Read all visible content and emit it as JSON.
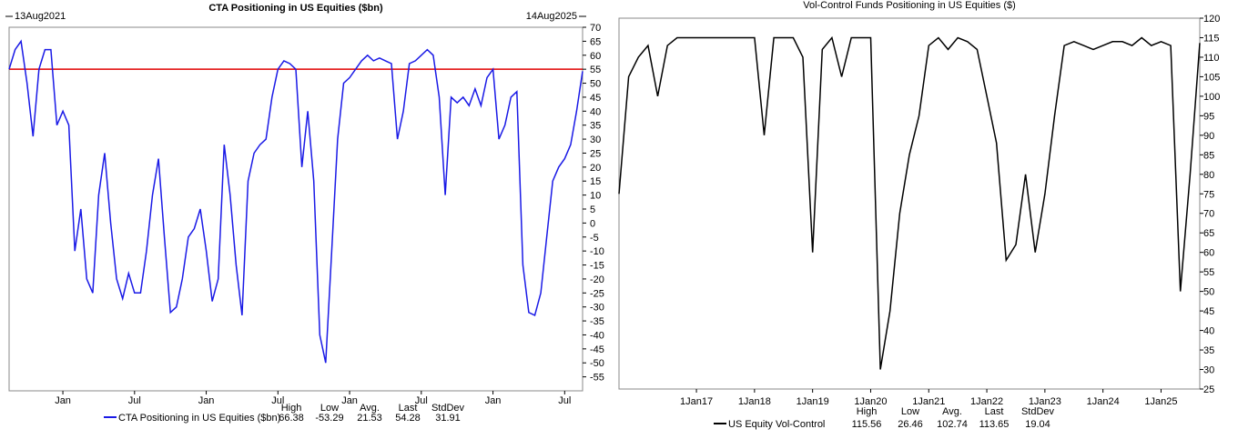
{
  "chart_data": [
    {
      "type": "line",
      "title": "CTA Positioning in US Equities ($bn)",
      "start_label": "13Aug2021",
      "end_label": "14Aug2025",
      "categories": [
        null,
        null,
        null,
        null,
        null,
        null,
        null,
        null,
        null,
        "Jan",
        null,
        null,
        null,
        null,
        null,
        null,
        null,
        null,
        null,
        null,
        null,
        "Jul",
        null,
        null,
        null,
        null,
        null,
        null,
        null,
        null,
        null,
        null,
        null,
        "Jan",
        null,
        null,
        null,
        null,
        null,
        null,
        null,
        null,
        null,
        null,
        null,
        "Jul",
        null,
        null,
        null,
        null,
        null,
        null,
        null,
        null,
        null,
        null,
        null,
        "Jan",
        null,
        null,
        null,
        null,
        null,
        null,
        null,
        null,
        null,
        null,
        null,
        "Jul",
        null,
        null,
        null,
        null,
        null,
        null,
        null,
        null,
        null,
        null,
        null,
        "Jan",
        null,
        null,
        null,
        null,
        null,
        null,
        null,
        null,
        null,
        null,
        null,
        "Jul",
        null,
        null,
        null
      ],
      "series": [
        {
          "name": "CTA Positioning in US Equities ($bn)",
          "color": "#1a1ae6",
          "values": [
            55,
            62,
            65,
            50,
            31,
            55,
            62,
            62,
            35,
            40,
            35,
            -10,
            5,
            -20,
            -25,
            10,
            25,
            0,
            -20,
            -27,
            -18,
            -25,
            -25,
            -10,
            10,
            23,
            -5,
            -32,
            -30,
            -20,
            -5,
            -2,
            5,
            -10,
            -28,
            -20,
            28,
            10,
            -15,
            -33,
            15,
            25,
            28,
            30,
            45,
            55,
            58,
            57,
            55,
            20,
            40,
            15,
            -40,
            -50,
            -10,
            30,
            50,
            52,
            55,
            58,
            60,
            58,
            59,
            58,
            57,
            30,
            40,
            57,
            58,
            60,
            62,
            60,
            45,
            10,
            45,
            43,
            45,
            42,
            48,
            42,
            52,
            55,
            30,
            35,
            45,
            47,
            -15,
            -32,
            -33,
            -25,
            -5,
            15,
            20,
            23,
            28,
            40,
            54.28
          ]
        }
      ],
      "ref_line": {
        "value": 55,
        "color": "#e00000"
      },
      "ylim": [
        -60,
        70
      ],
      "yticks": [
        70,
        65,
        60,
        55,
        50,
        45,
        40,
        35,
        30,
        25,
        20,
        15,
        10,
        5,
        0,
        -5,
        -10,
        -15,
        -20,
        -25,
        -30,
        -35,
        -40,
        -45,
        -50,
        -55
      ],
      "stats": {
        "labels": [
          "High",
          "Low",
          "Avg.",
          "Last",
          "StdDev"
        ],
        "values": [
          66.38,
          -53.29,
          21.53,
          54.28,
          31.91
        ]
      }
    },
    {
      "type": "line",
      "title": "Vol-Control Funds Positioning in US Equities ($)",
      "categories": [
        null,
        null,
        null,
        null,
        null,
        null,
        null,
        null,
        "1Jan17",
        null,
        null,
        null,
        null,
        null,
        "1Jan18",
        null,
        null,
        null,
        null,
        null,
        "1Jan19",
        null,
        null,
        null,
        null,
        null,
        "1Jan20",
        null,
        null,
        null,
        null,
        null,
        "1Jan21",
        null,
        null,
        null,
        null,
        null,
        "1Jan22",
        null,
        null,
        null,
        null,
        null,
        "1Jan23",
        null,
        null,
        null,
        null,
        null,
        "1Jan24",
        null,
        null,
        null,
        null,
        null,
        "1Jan25",
        null,
        null,
        null,
        null
      ],
      "series": [
        {
          "name": "US Equity Vol-Control",
          "color": "#000000",
          "values": [
            75,
            105,
            110,
            113,
            100,
            113,
            115,
            115,
            115,
            115,
            115,
            115,
            115,
            115,
            115,
            90,
            115,
            115,
            115,
            110,
            60,
            112,
            115,
            105,
            115,
            115,
            115,
            30,
            45,
            70,
            85,
            95,
            113,
            115,
            112,
            115,
            114,
            112,
            100,
            88,
            58,
            62,
            80,
            60,
            75,
            95,
            113,
            114,
            113,
            112,
            113,
            114,
            114,
            113,
            115,
            113,
            114,
            113,
            50,
            80,
            113.65
          ]
        }
      ],
      "ylim": [
        25,
        120
      ],
      "yticks": [
        120,
        115,
        110,
        105,
        100,
        95,
        90,
        85,
        80,
        75,
        70,
        65,
        60,
        55,
        50,
        45,
        40,
        35,
        30,
        25
      ],
      "stats": {
        "labels": [
          "High",
          "Low",
          "Avg.",
          "Last",
          "StdDev"
        ],
        "values": [
          115.56,
          26.46,
          102.74,
          113.65,
          19.04
        ]
      }
    }
  ]
}
